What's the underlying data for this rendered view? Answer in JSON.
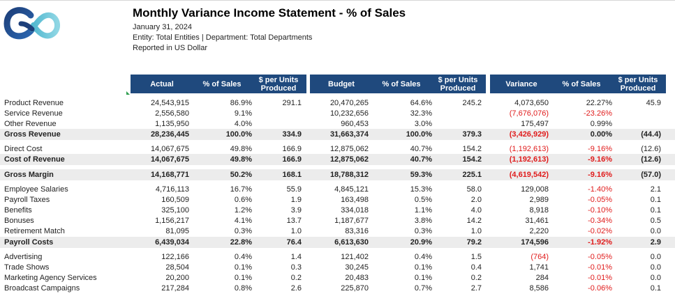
{
  "report": {
    "title": "Monthly Variance Income Statement - % of Sales",
    "date": "January 31, 2024",
    "entity_line": "Entity: Total Entities | Department: Total Departments",
    "currency_line": "Reported in US Dollar"
  },
  "headers": {
    "actual": [
      "Actual",
      "% of Sales",
      "$ per Units\nProduced"
    ],
    "budget": [
      "Budget",
      "% of Sales",
      "$ per Units\nProduced"
    ],
    "variance": [
      "Variance",
      "% of Sales",
      "$ per Units\nProduced"
    ]
  },
  "colors": {
    "header_bg": "#1f497d",
    "negative": "#e01b1b",
    "total_row_bg": "#ececec"
  },
  "rows": [
    {
      "label": "Product Revenue",
      "a": "24,543,915",
      "ap": "86.9%",
      "au": "291.1",
      "b": "20,470,265",
      "bp": "64.6%",
      "bu": "245.2",
      "v": "4,073,650",
      "vp": "22.27%",
      "vu": "45.9"
    },
    {
      "label": "Service Revenue",
      "a": "2,556,580",
      "ap": "9.1%",
      "au": "",
      "b": "10,232,656",
      "bp": "32.3%",
      "bu": "",
      "v": "(7,676,076)",
      "vp": "-23.26%",
      "vu": ""
    },
    {
      "label": "Other Revenue",
      "a": "1,135,950",
      "ap": "4.0%",
      "au": "",
      "b": "960,453",
      "bp": "3.0%",
      "bu": "",
      "v": "175,497",
      "vp": "0.99%",
      "vu": ""
    },
    {
      "label": "Gross Revenue",
      "total": true,
      "a": "28,236,445",
      "ap": "100.0%",
      "au": "334.9",
      "b": "31,663,374",
      "bp": "100.0%",
      "bu": "379.3",
      "v": "(3,426,929)",
      "vp": "0.00%",
      "vu": "(44.4)"
    },
    {
      "label": "Direct Cost",
      "a": "14,067,675",
      "ap": "49.8%",
      "au": "166.9",
      "b": "12,875,062",
      "bp": "40.7%",
      "bu": "154.2",
      "v": "(1,192,613)",
      "vp": "-9.16%",
      "vu": "(12.6)"
    },
    {
      "label": "Cost of Revenue",
      "total": true,
      "a": "14,067,675",
      "ap": "49.8%",
      "au": "166.9",
      "b": "12,875,062",
      "bp": "40.7%",
      "bu": "154.2",
      "v": "(1,192,613)",
      "vp": "-9.16%",
      "vu": "(12.6)"
    },
    {
      "label": "Gross Margin",
      "total": true,
      "a": "14,168,771",
      "ap": "50.2%",
      "au": "168.1",
      "b": "18,788,312",
      "bp": "59.3%",
      "bu": "225.1",
      "v": "(4,619,542)",
      "vp": "-9.16%",
      "vu": "(57.0)"
    },
    {
      "label": "Employee Salaries",
      "a": "4,716,113",
      "ap": "16.7%",
      "au": "55.9",
      "b": "4,845,121",
      "bp": "15.3%",
      "bu": "58.0",
      "v": "129,008",
      "vp": "-1.40%",
      "vu": "2.1"
    },
    {
      "label": "Payroll Taxes",
      "a": "160,509",
      "ap": "0.6%",
      "au": "1.9",
      "b": "163,498",
      "bp": "0.5%",
      "bu": "2.0",
      "v": "2,989",
      "vp": "-0.05%",
      "vu": "0.1"
    },
    {
      "label": "Benefits",
      "a": "325,100",
      "ap": "1.2%",
      "au": "3.9",
      "b": "334,018",
      "bp": "1.1%",
      "bu": "4.0",
      "v": "8,918",
      "vp": "-0.10%",
      "vu": "0.1"
    },
    {
      "label": "Bonuses",
      "a": "1,156,217",
      "ap": "4.1%",
      "au": "13.7",
      "b": "1,187,677",
      "bp": "3.8%",
      "bu": "14.2",
      "v": "31,461",
      "vp": "-0.34%",
      "vu": "0.5"
    },
    {
      "label": "Retirement Match",
      "a": "81,095",
      "ap": "0.3%",
      "au": "1.0",
      "b": "83,316",
      "bp": "0.3%",
      "bu": "1.0",
      "v": "2,220",
      "vp": "-0.02%",
      "vu": "0.0"
    },
    {
      "label": "Payroll Costs",
      "total": true,
      "a": "6,439,034",
      "ap": "22.8%",
      "au": "76.4",
      "b": "6,613,630",
      "bp": "20.9%",
      "bu": "79.2",
      "v": "174,596",
      "vp": "-1.92%",
      "vu": "2.9"
    },
    {
      "label": "Advertising",
      "a": "122,166",
      "ap": "0.4%",
      "au": "1.4",
      "b": "121,402",
      "bp": "0.4%",
      "bu": "1.5",
      "v": "(764)",
      "vp": "-0.05%",
      "vu": "0.0"
    },
    {
      "label": "Trade Shows",
      "a": "28,504",
      "ap": "0.1%",
      "au": "0.3",
      "b": "30,245",
      "bp": "0.1%",
      "bu": "0.4",
      "v": "1,741",
      "vp": "-0.01%",
      "vu": "0.0"
    },
    {
      "label": "Marketing Agency Services",
      "a": "20,200",
      "ap": "0.1%",
      "au": "0.2",
      "b": "20,483",
      "bp": "0.1%",
      "bu": "0.2",
      "v": "284",
      "vp": "-0.01%",
      "vu": "0.0"
    },
    {
      "label": "Broadcast Campaigns",
      "a": "217,284",
      "ap": "0.8%",
      "au": "2.6",
      "b": "225,870",
      "bp": "0.7%",
      "bu": "2.7",
      "v": "8,586",
      "vp": "-0.06%",
      "vu": "0.1"
    }
  ]
}
